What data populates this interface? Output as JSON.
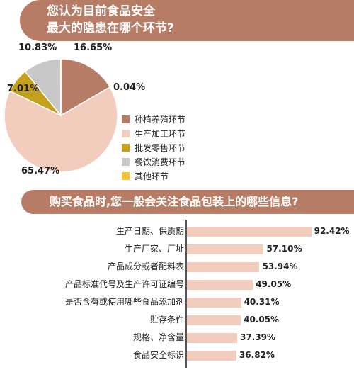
{
  "chart_data": [
    {
      "type": "pie",
      "title": "您认为目前食品安全最大的隐患在哪个环节?",
      "title_lines": [
        "您认为目前食品安全",
        "最大的隐患在哪个环节?"
      ],
      "slices": [
        {
          "name": "种植养殖环节",
          "value": 16.65,
          "label": "16.65%",
          "color": "#b77c66"
        },
        {
          "name": "生产加工环节",
          "value": 65.47,
          "label": "65.47%",
          "color": "#f2cdbe"
        },
        {
          "name": "批发零售环节",
          "value": 7.01,
          "label": "7.01%",
          "color": "#c4a11a"
        },
        {
          "name": "餐饮消费环节",
          "value": 10.83,
          "label": "10.83%",
          "color": "#c8c8c8"
        },
        {
          "name": "其他环节",
          "value": 0.04,
          "label": "0.04%",
          "color": "#f2c335"
        }
      ],
      "legend_position": "right"
    },
    {
      "type": "bar",
      "orientation": "horizontal",
      "title": "购买食品时,您一般会关注食品包装上的哪些信息?",
      "categories": [
        "生产日期、保质期",
        "生产厂家、厂址",
        "产品成分或者配料表",
        "产品标准代号及生产许可证编号",
        "是否含有或使用哪些食品添加剂",
        "贮存条件",
        "规格、净含量",
        "食品安全标识"
      ],
      "values": [
        92.42,
        57.1,
        53.94,
        49.05,
        40.31,
        40.05,
        37.39,
        36.82
      ],
      "value_labels": [
        "92.42%",
        "57.10%",
        "53.94%",
        "49.05%",
        "40.31%",
        "40.05%",
        "37.39%",
        "36.82%"
      ],
      "xlim": [
        0,
        100
      ],
      "color": "#f2cdbe"
    }
  ]
}
